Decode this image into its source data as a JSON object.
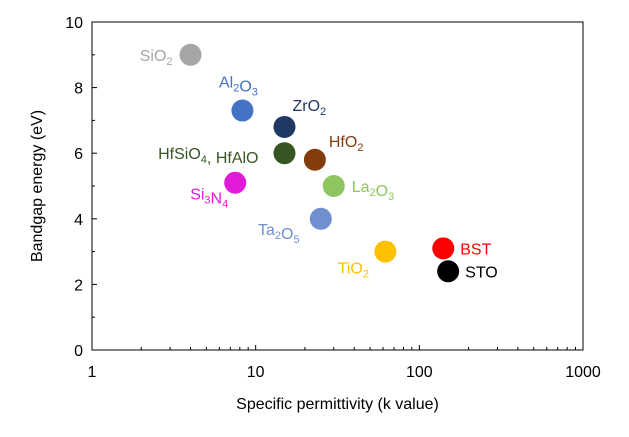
{
  "chart_data": {
    "type": "scatter",
    "title": "",
    "xlabel": "Specific permittivity (k value)",
    "ylabel": "Bandgap energy (eV)",
    "xscale": "log",
    "xlim": [
      1,
      1000
    ],
    "ylim": [
      0,
      10
    ],
    "xticks": [
      1,
      10,
      100,
      1000
    ],
    "xtick_labels": [
      "1",
      "10",
      "100",
      "1000"
    ],
    "yticks": [
      0,
      2,
      4,
      6,
      8,
      10
    ],
    "ytick_labels": [
      "0",
      "2",
      "4",
      "6",
      "8",
      "10"
    ],
    "grid": false,
    "legend": "none",
    "points": [
      {
        "id": "sio2",
        "base": "SiO",
        "sub": "2",
        "rest": "",
        "x": 4,
        "y": 9.0,
        "color": "#a6a6a6",
        "label_pos": "left"
      },
      {
        "id": "al2o3",
        "base": "Al",
        "sub": "2",
        "rest": "O",
        "sub2": "3",
        "x": 8.3,
        "y": 7.3,
        "color": "#4472c4",
        "label_pos": "above"
      },
      {
        "id": "zro2",
        "base": "ZrO",
        "sub": "2",
        "rest": "",
        "x": 15,
        "y": 6.8,
        "color": "#1f3864",
        "label_pos": "above-right"
      },
      {
        "id": "hfsio4",
        "base": "HfSiO",
        "sub": "4",
        "rest": ", HfAlO",
        "x": 15,
        "y": 6.0,
        "color": "#375623",
        "label_pos": "left"
      },
      {
        "id": "hfo2",
        "base": "HfO",
        "sub": "2",
        "rest": "",
        "x": 23,
        "y": 5.8,
        "color": "#843c0c",
        "label_pos": "above-right"
      },
      {
        "id": "si3n4",
        "base": "Si",
        "sub": "3",
        "rest": "N",
        "sub2": "4",
        "x": 7.5,
        "y": 5.1,
        "color": "#e21bd8",
        "label_pos": "below-left"
      },
      {
        "id": "la2o3",
        "base": "La",
        "sub": "2",
        "rest": "O",
        "sub2": "3",
        "x": 30,
        "y": 5.0,
        "color": "#8fc55e",
        "label_pos": "right"
      },
      {
        "id": "ta2o5",
        "base": "Ta",
        "sub": "2",
        "rest": "O",
        "sub2": "5",
        "x": 25,
        "y": 4.0,
        "color": "#6f8fd0",
        "label_pos": "below-left"
      },
      {
        "id": "tio2",
        "base": "TiO",
        "sub": "2",
        "rest": "",
        "x": 62,
        "y": 3.0,
        "color": "#ffc000",
        "label_pos": "below-left"
      },
      {
        "id": "bst",
        "base": "BST",
        "sub": "",
        "rest": "",
        "x": 140,
        "y": 3.1,
        "color": "#ff0000",
        "label_pos": "right"
      },
      {
        "id": "sto",
        "base": "STO",
        "sub": "",
        "rest": "",
        "x": 150,
        "y": 2.4,
        "color": "#000000",
        "label_pos": "right"
      }
    ]
  },
  "colors": {
    "label_sio2": "#a6a6a6",
    "label_al2o3": "#4472c4",
    "label_zro2": "#1f3864",
    "label_hfsio4": "#375623",
    "label_hfo2": "#843c0c",
    "label_si3n4": "#e21bd8",
    "label_la2o3": "#8fc55e",
    "label_ta2o5": "#6f8fd0",
    "label_tio2": "#ffc000",
    "label_bst": "#ff0000",
    "label_sto": "#000000"
  }
}
